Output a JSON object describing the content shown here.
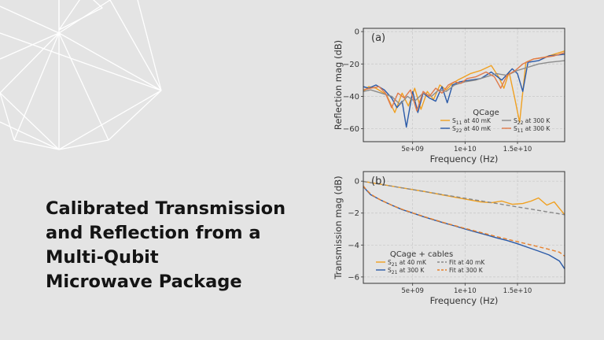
{
  "slide": {
    "title_lines": [
      "Calibrated Transmission",
      "and Reflection from a",
      "Multi-Qubit",
      "Microwave Package"
    ]
  },
  "colors": {
    "background": "#e4e4e4",
    "pattern": "#ffffff",
    "orange": "#f0a020",
    "blue": "#2a5aa8",
    "gray": "#8c8c8c",
    "red_orange": "#e07a4a",
    "fit_gray": "#888888",
    "fit_orange": "#e8802a"
  },
  "chart_data": [
    {
      "type": "line",
      "panel_label": "(a)",
      "xlabel": "Frequency (Hz)",
      "ylabel": "Reflection mag (dB)",
      "xlim": [
        300000000,
        19500000000
      ],
      "ylim": [
        -68,
        2
      ],
      "xticks": [
        5000000000,
        10000000000,
        15000000000
      ],
      "xtick_labels": [
        "5e+09",
        "1e+10",
        "1.5e+10"
      ],
      "yticks": [
        0,
        -20,
        -40,
        -60
      ],
      "ytick_labels": [
        "0",
        "−20",
        "−40",
        "−60"
      ],
      "grid": true,
      "legend_title": "QCage",
      "legend_position": "lower-right",
      "series": [
        {
          "name": "S11 at 40 mK",
          "name_main": "S",
          "name_sub": "11",
          "name_rest": " at 40 mK",
          "color": "#f0a020",
          "dash": "solid",
          "x_ghz": [
            0.3,
            0.8,
            1.5,
            2.5,
            3.3,
            4.0,
            4.6,
            5.2,
            5.8,
            6.4,
            7.0,
            7.6,
            8.2,
            8.8,
            9.3,
            9.9,
            10.5,
            11.5,
            12.5,
            13.2,
            13.7,
            14.2,
            14.7,
            15.2,
            15.8,
            16.5,
            17.5,
            18.5,
            19.5
          ],
          "y": [
            -37,
            -34,
            -35,
            -39,
            -50,
            -38,
            -46,
            -35,
            -48,
            -37,
            -42,
            -33,
            -36,
            -32,
            -30,
            -28,
            -26,
            -24,
            -21,
            -28,
            -35,
            -25,
            -40,
            -56,
            -19,
            -17,
            -16,
            -14,
            -12
          ]
        },
        {
          "name": "S22 at 40 mK",
          "name_main": "S",
          "name_sub": "22",
          "name_rest": " at 40 mK",
          "color": "#2a5aa8",
          "dash": "solid",
          "x_ghz": [
            0.3,
            0.8,
            1.5,
            2.3,
            3.0,
            3.5,
            4.0,
            4.4,
            5.0,
            5.5,
            6.0,
            6.6,
            7.2,
            7.8,
            8.3,
            8.8,
            9.5,
            10.5,
            11.5,
            12.5,
            13.5,
            14.5,
            15.0,
            15.5,
            16.0,
            17.0,
            18.0,
            19.5
          ],
          "y": [
            -34,
            -35,
            -33,
            -36,
            -41,
            -47,
            -43,
            -59,
            -37,
            -50,
            -38,
            -41,
            -43,
            -34,
            -44,
            -33,
            -31,
            -30,
            -29,
            -25,
            -30,
            -23,
            -26,
            -37,
            -19,
            -18,
            -15,
            -14
          ]
        },
        {
          "name": "S22 at 300 K",
          "name_main": "S",
          "name_sub": "22",
          "name_rest": " at 300 K",
          "color": "#8c8c8c",
          "dash": "solid",
          "x_ghz": [
            0.3,
            1.0,
            2.0,
            3.0,
            3.8,
            4.5,
            5.2,
            6.0,
            6.8,
            7.5,
            8.2,
            9.0,
            10.0,
            11.0,
            12.0,
            13.0,
            14.0,
            15.0,
            16.0,
            17.0,
            18.0,
            19.5
          ],
          "y": [
            -37,
            -36,
            -38,
            -40,
            -45,
            -40,
            -43,
            -38,
            -40,
            -36,
            -37,
            -33,
            -31,
            -30,
            -28,
            -26,
            -27,
            -24,
            -22,
            -20,
            -19,
            -18
          ]
        },
        {
          "name": "S11 at 300 K",
          "name_main": "S",
          "name_sub": "11",
          "name_rest": " at 300 K",
          "color": "#e07a4a",
          "dash": "solid",
          "x_ghz": [
            0.3,
            1.0,
            1.8,
            2.4,
            3.0,
            3.6,
            4.2,
            4.8,
            5.4,
            6.0,
            6.6,
            7.2,
            7.8,
            8.4,
            9.0,
            9.6,
            10.2,
            11.0,
            12.0,
            12.8,
            13.4,
            14.0,
            14.8,
            15.5,
            16.5,
            17.5,
            18.5,
            19.5
          ],
          "y": [
            -36,
            -35,
            -34,
            -38,
            -47,
            -38,
            -41,
            -36,
            -49,
            -37,
            -40,
            -35,
            -38,
            -33,
            -31,
            -32,
            -29,
            -28,
            -25,
            -28,
            -35,
            -27,
            -24,
            -20,
            -17,
            -16,
            -15,
            -13
          ]
        }
      ]
    },
    {
      "type": "line",
      "panel_label": "(b)",
      "xlabel": "Frequency (Hz)",
      "ylabel": "Transmission mag (dB)",
      "xlim": [
        300000000,
        19500000000
      ],
      "ylim": [
        -6.4,
        0.6
      ],
      "xticks": [
        5000000000,
        10000000000,
        15000000000
      ],
      "xtick_labels": [
        "5e+09",
        "1e+10",
        "1.5e+10"
      ],
      "yticks": [
        0,
        -2,
        -4,
        -6
      ],
      "ytick_labels": [
        "0",
        "−2",
        "−4",
        "−6"
      ],
      "grid": true,
      "legend_title": "QCage + cables",
      "legend_position": "lower-left",
      "series": [
        {
          "name": "S21 at 40 mK",
          "name_main": "S",
          "name_sub": "21",
          "name_rest": " at 40 mK",
          "color": "#f0a020",
          "dash": "solid",
          "x_ghz": [
            0.3,
            2.0,
            4.0,
            6.0,
            8.0,
            10.0,
            11.5,
            12.5,
            13.5,
            14.5,
            15.5,
            16.3,
            17.0,
            17.8,
            18.5,
            19.0,
            19.5
          ],
          "y": [
            -0.02,
            -0.2,
            -0.42,
            -0.63,
            -0.88,
            -1.12,
            -1.3,
            -1.35,
            -1.25,
            -1.45,
            -1.4,
            -1.25,
            -1.05,
            -1.5,
            -1.3,
            -1.7,
            -2.1
          ]
        },
        {
          "name": "S21 at 300 K",
          "name_main": "S",
          "name_sub": "21",
          "name_rest": " at 300 K",
          "color": "#2a5aa8",
          "dash": "solid",
          "x_ghz": [
            0.3,
            1.0,
            2.0,
            3.0,
            4.0,
            5.0,
            6.0,
            7.0,
            8.0,
            9.0,
            10.0,
            11.0,
            12.0,
            13.0,
            14.0,
            15.0,
            16.0,
            17.0,
            18.0,
            19.0,
            19.5
          ],
          "y": [
            -0.35,
            -0.85,
            -1.2,
            -1.5,
            -1.78,
            -2.0,
            -2.22,
            -2.42,
            -2.62,
            -2.8,
            -3.0,
            -3.18,
            -3.36,
            -3.55,
            -3.72,
            -3.92,
            -4.15,
            -4.38,
            -4.62,
            -5.0,
            -5.5
          ]
        },
        {
          "name": "Fit at 40 mK",
          "color": "#888888",
          "dash": "dashed",
          "x_ghz": [
            0.3,
            19.5
          ],
          "y": [
            -0.02,
            -2.1
          ]
        },
        {
          "name": "Fit at 300 K",
          "color": "#e8802a",
          "dash": "dashed",
          "x_ghz": [
            0.3,
            0.6,
            1.0,
            1.5,
            2.0,
            3.0,
            4.0,
            5.0,
            6.0,
            7.0,
            8.0,
            9.0,
            10.0,
            11.0,
            12.0,
            13.0,
            14.0,
            15.0,
            16.0,
            17.0,
            18.0,
            19.0,
            19.5
          ],
          "y": [
            -0.3,
            -0.55,
            -0.8,
            -1.02,
            -1.2,
            -1.5,
            -1.76,
            -1.99,
            -2.2,
            -2.4,
            -2.6,
            -2.78,
            -2.96,
            -3.13,
            -3.3,
            -3.47,
            -3.63,
            -3.79,
            -3.95,
            -4.11,
            -4.27,
            -4.45,
            -4.7
          ]
        }
      ]
    }
  ]
}
